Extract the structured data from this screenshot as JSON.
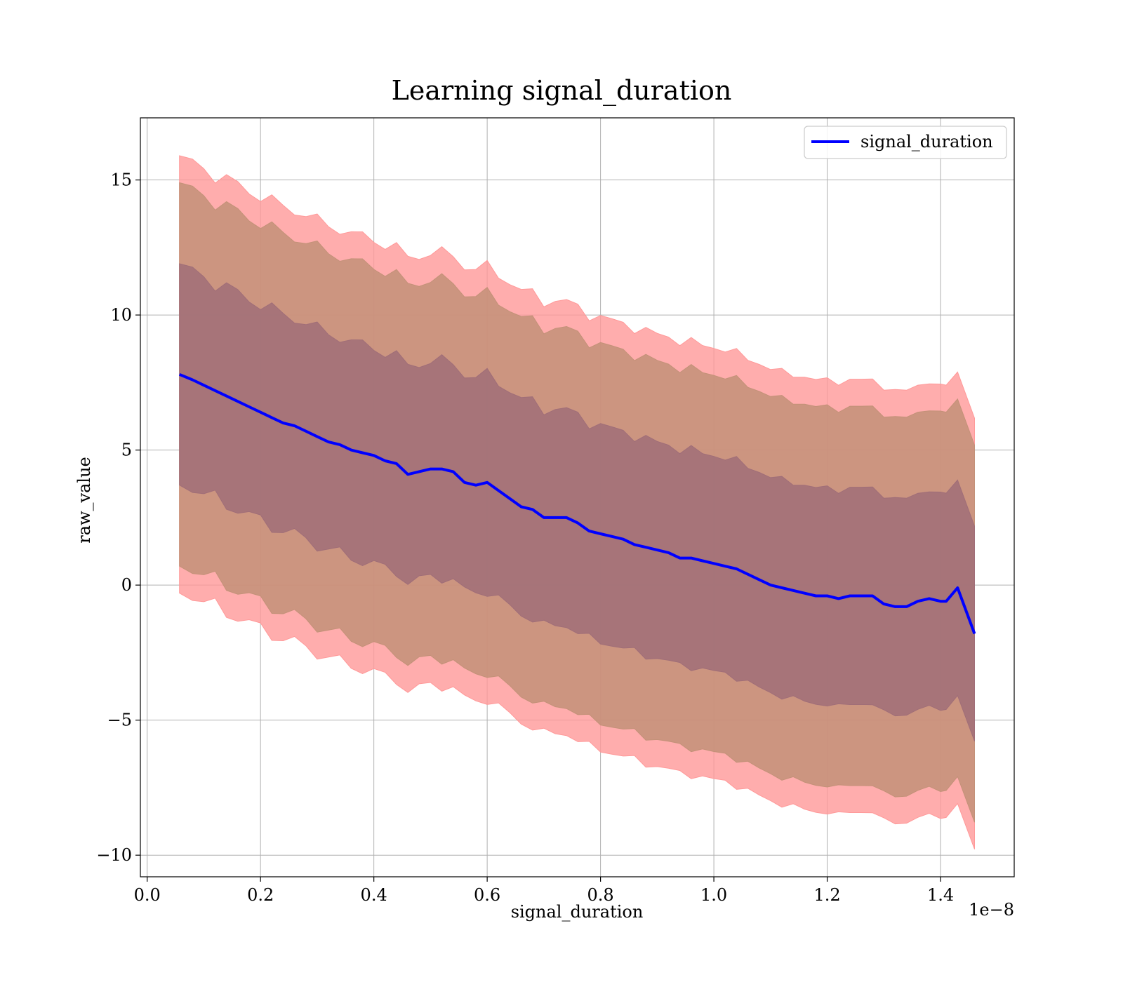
{
  "chart_data": {
    "type": "line",
    "title": "Learning signal_duration",
    "xlabel": "signal_duration",
    "ylabel": "raw_value",
    "x_offset_label": "1e−8",
    "xlim": [
      -0.012,
      1.53
    ],
    "ylim": [
      -10.8,
      17.3
    ],
    "x_ticks": [
      0.0,
      0.2,
      0.4,
      0.6,
      0.8,
      1.0,
      1.2,
      1.4
    ],
    "x_tick_labels": [
      "0.0",
      "0.2",
      "0.4",
      "0.6",
      "0.8",
      "1.0",
      "1.2",
      "1.4"
    ],
    "y_ticks": [
      -10,
      -5,
      0,
      5,
      10,
      15
    ],
    "y_tick_labels": [
      "−10",
      "−5",
      "0",
      "5",
      "10",
      "15"
    ],
    "grid": true,
    "legend": {
      "position": "top-right",
      "entries": [
        "signal_duration"
      ]
    },
    "colors": {
      "line": "#0000ff",
      "band_outer": "#ff9999",
      "band_middle": "#c39178",
      "band_inner": "#a06e78"
    },
    "series": [
      {
        "name": "signal_duration",
        "x": [
          0.057,
          0.08,
          0.1,
          0.12,
          0.14,
          0.16,
          0.18,
          0.2,
          0.22,
          0.24,
          0.26,
          0.28,
          0.3,
          0.32,
          0.34,
          0.36,
          0.38,
          0.4,
          0.42,
          0.44,
          0.46,
          0.48,
          0.5,
          0.52,
          0.54,
          0.56,
          0.58,
          0.6,
          0.62,
          0.64,
          0.66,
          0.68,
          0.7,
          0.72,
          0.74,
          0.76,
          0.78,
          0.8,
          0.82,
          0.84,
          0.86,
          0.88,
          0.9,
          0.92,
          0.94,
          0.96,
          0.98,
          1.0,
          1.02,
          1.04,
          1.06,
          1.08,
          1.1,
          1.12,
          1.14,
          1.16,
          1.18,
          1.2,
          1.22,
          1.24,
          1.26,
          1.28,
          1.3,
          1.32,
          1.34,
          1.36,
          1.38,
          1.4,
          1.41,
          1.43,
          1.46
        ],
        "y": [
          7.8,
          7.6,
          7.4,
          7.2,
          7.0,
          6.8,
          6.6,
          6.4,
          6.2,
          6.0,
          5.9,
          5.7,
          5.5,
          5.3,
          5.2,
          5.0,
          4.9,
          4.8,
          4.6,
          4.5,
          4.1,
          4.2,
          4.3,
          4.3,
          4.2,
          3.8,
          3.7,
          3.8,
          3.5,
          3.2,
          2.9,
          2.8,
          2.5,
          2.5,
          2.5,
          2.3,
          2.0,
          1.9,
          1.8,
          1.7,
          1.5,
          1.4,
          1.3,
          1.2,
          1.0,
          1.0,
          0.9,
          0.8,
          0.7,
          0.6,
          0.4,
          0.2,
          0.0,
          -0.1,
          -0.2,
          -0.3,
          -0.4,
          -0.4,
          -0.5,
          -0.4,
          -0.4,
          -0.4,
          -0.7,
          -0.8,
          -0.8,
          -0.6,
          -0.5,
          -0.6,
          -0.6,
          -0.1,
          -1.8
        ]
      }
    ],
    "bands": [
      {
        "offset": 8,
        "offset_sd": 1
      },
      {
        "offset": 7,
        "offset_sd": 2
      },
      {
        "offset": 4,
        "offset_sd": 3
      }
    ]
  }
}
